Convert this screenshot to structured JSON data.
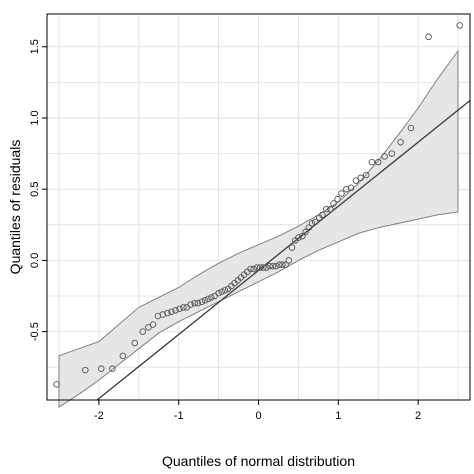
{
  "chart_data": {
    "type": "scatter",
    "xlabel": "Quantiles of normal distribution",
    "ylabel": "Quantiles of residuals",
    "xlim": [
      -2.65,
      2.65
    ],
    "ylim": [
      -0.98,
      1.73
    ],
    "x_ticks": [
      -2,
      -1,
      0,
      1,
      2
    ],
    "x_tick_labels": [
      "-2",
      "-1",
      "0",
      "1",
      "2"
    ],
    "y_ticks": [
      -0.5,
      0.0,
      0.5,
      1.0,
      1.5
    ],
    "y_tick_labels": [
      "-0.5",
      "0.0",
      "0.5",
      "1.0",
      "1.5"
    ],
    "grid": true,
    "colors": {
      "background": "#ffffff",
      "grid": "#e2e2e2",
      "band_fill": "#e6e6e6",
      "band_stroke": "#808080",
      "line": "#3a3a3a",
      "points": "#555555"
    },
    "reference_line": {
      "intercept": -0.07,
      "slope": 0.45
    },
    "confidence_band": {
      "x": [
        -2.5,
        -2.25,
        -2.0,
        -1.75,
        -1.5,
        -1.25,
        -1.0,
        -0.75,
        -0.5,
        -0.25,
        0.0,
        0.25,
        0.5,
        0.75,
        1.0,
        1.25,
        1.5,
        1.75,
        2.0,
        2.25,
        2.5
      ],
      "upper": [
        -0.67,
        -0.62,
        -0.57,
        -0.45,
        -0.33,
        -0.26,
        -0.19,
        -0.1,
        -0.02,
        0.05,
        0.11,
        0.17,
        0.24,
        0.32,
        0.41,
        0.54,
        0.7,
        0.88,
        1.07,
        1.28,
        1.47
      ],
      "lower": [
        -1.03,
        -0.94,
        -0.84,
        -0.73,
        -0.62,
        -0.51,
        -0.43,
        -0.36,
        -0.29,
        -0.22,
        -0.15,
        -0.08,
        0.0,
        0.07,
        0.13,
        0.19,
        0.23,
        0.26,
        0.29,
        0.32,
        0.34
      ]
    },
    "series": [
      {
        "x": [
          -2.53,
          -2.17,
          -1.97,
          -1.83,
          -1.7,
          -1.55,
          -1.45,
          -1.38,
          -1.32,
          -1.26,
          -1.2,
          -1.14,
          -1.09,
          -1.04,
          -0.99,
          -0.94,
          -0.9,
          -0.85,
          -0.8,
          -0.76,
          -0.71,
          -0.67,
          -0.63,
          -0.59,
          -0.55,
          -0.5,
          -0.46,
          -0.42,
          -0.38,
          -0.34,
          -0.3,
          -0.26,
          -0.22,
          -0.18,
          -0.14,
          -0.1,
          -0.06,
          -0.02,
          0.02,
          0.06,
          0.1,
          0.14,
          0.18,
          0.22,
          0.26,
          0.3,
          0.34,
          0.38,
          0.42,
          0.46,
          0.5,
          0.55,
          0.59,
          0.63,
          0.67,
          0.71,
          0.76,
          0.8,
          0.85,
          0.9,
          0.94,
          0.99,
          1.04,
          1.1,
          1.16,
          1.22,
          1.28,
          1.35,
          1.42,
          1.5,
          1.58,
          1.67,
          1.78,
          1.91,
          2.13,
          2.52
        ],
        "y": [
          -0.87,
          -0.77,
          -0.76,
          -0.76,
          -0.67,
          -0.58,
          -0.5,
          -0.47,
          -0.45,
          -0.39,
          -0.38,
          -0.37,
          -0.36,
          -0.35,
          -0.34,
          -0.33,
          -0.33,
          -0.31,
          -0.3,
          -0.3,
          -0.29,
          -0.28,
          -0.27,
          -0.26,
          -0.25,
          -0.23,
          -0.22,
          -0.21,
          -0.2,
          -0.18,
          -0.16,
          -0.14,
          -0.12,
          -0.1,
          -0.08,
          -0.06,
          -0.06,
          -0.05,
          -0.05,
          -0.05,
          -0.05,
          -0.04,
          -0.04,
          -0.04,
          -0.03,
          -0.03,
          -0.03,
          0.0,
          0.09,
          0.14,
          0.16,
          0.17,
          0.2,
          0.23,
          0.26,
          0.27,
          0.3,
          0.32,
          0.36,
          0.36,
          0.4,
          0.43,
          0.47,
          0.5,
          0.51,
          0.56,
          0.58,
          0.6,
          0.69,
          0.69,
          0.73,
          0.75,
          0.83,
          0.93,
          1.57,
          1.65
        ]
      }
    ]
  }
}
